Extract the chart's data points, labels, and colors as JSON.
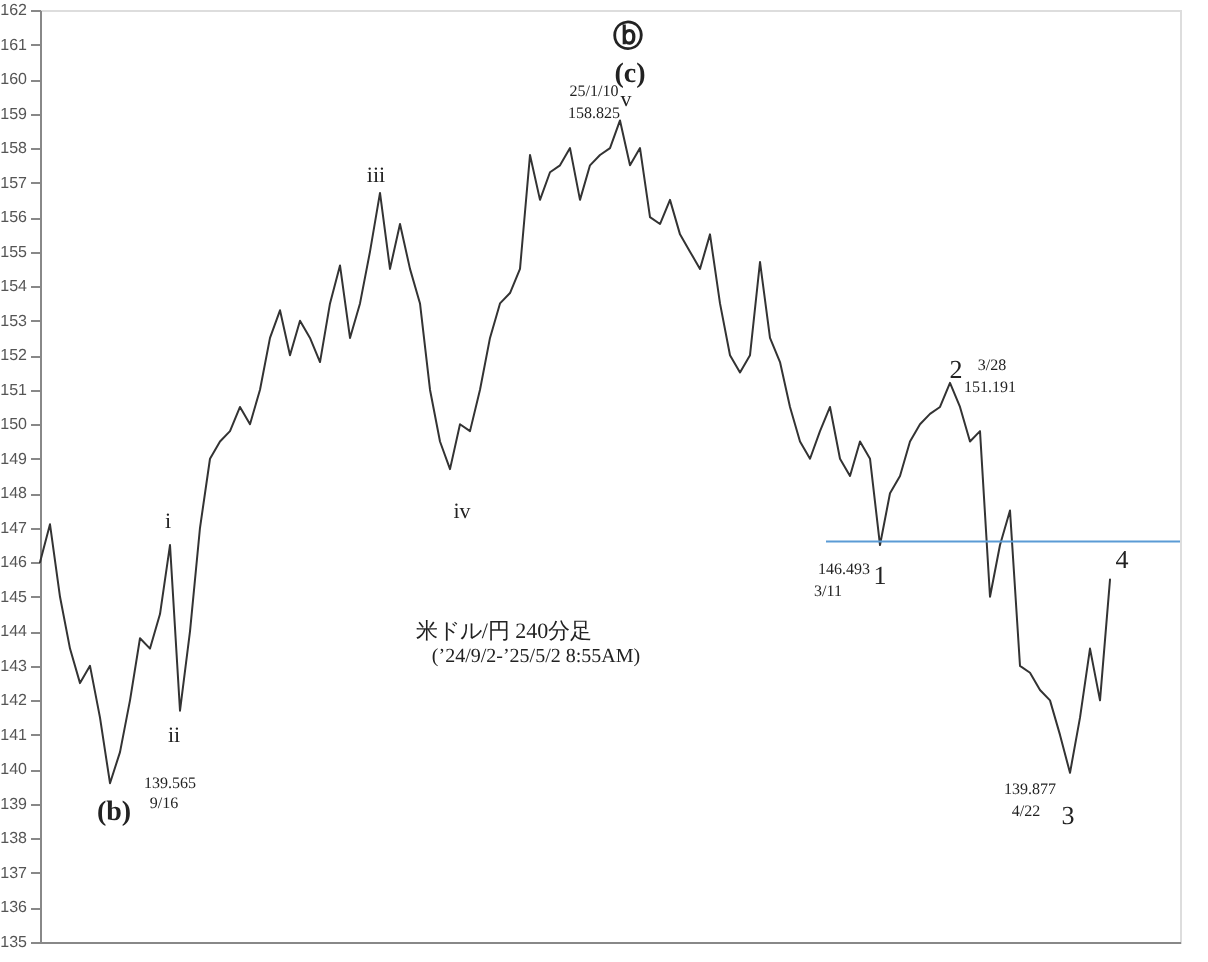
{
  "chart_data": {
    "type": "line",
    "categories": [
      null,
      null,
      null,
      null,
      null,
      null,
      null,
      null,
      null,
      null,
      null,
      null,
      null,
      null,
      null,
      null,
      null,
      null,
      null,
      null,
      null,
      null,
      null,
      null,
      null,
      null,
      null,
      null,
      null,
      null,
      null,
      null,
      null,
      null,
      null,
      null,
      null,
      null,
      null,
      null,
      null,
      null,
      null,
      null,
      null,
      null,
      null,
      null,
      null,
      null,
      null,
      null,
      null,
      null,
      null,
      null,
      null,
      null,
      null,
      null,
      null,
      null,
      null,
      null,
      null,
      null,
      null,
      null,
      null,
      null,
      null,
      null,
      null,
      null,
      null,
      null,
      null,
      null,
      null,
      null,
      null,
      null,
      null,
      null,
      null,
      null,
      null,
      null,
      null,
      null,
      null,
      null,
      null,
      null,
      null,
      null,
      null,
      null,
      null,
      null,
      null,
      null,
      null,
      null,
      null,
      null,
      null,
      null,
      null,
      null,
      null,
      null,
      null,
      null,
      null
    ],
    "series": [
      {
        "color": "#333333",
        "values": [
          146,
          147.1,
          145,
          143.5,
          142.5,
          143,
          141.5,
          139.6,
          140.5,
          142,
          143.8,
          143.5,
          144.5,
          146.5,
          141.7,
          144,
          147,
          149,
          149.5,
          149.8,
          150.5,
          150,
          151,
          152.5,
          153.3,
          152,
          153,
          152.5,
          151.8,
          153.5,
          154.6,
          152.5,
          153.5,
          155,
          156.7,
          154.5,
          155.8,
          154.5,
          153.5,
          151,
          149.5,
          148.7,
          150,
          149.8,
          151,
          152.5,
          153.5,
          153.8,
          154.5,
          157.8,
          156.5,
          157.3,
          157.5,
          158,
          156.5,
          157.5,
          157.8,
          158,
          158.8,
          157.5,
          158,
          156,
          155.8,
          156.5,
          155.5,
          155,
          154.5,
          155.5,
          153.5,
          152,
          151.5,
          152,
          154.7,
          152.5,
          151.8,
          150.5,
          149.5,
          149,
          149.8,
          150.5,
          149,
          148.5,
          149.5,
          149,
          146.5,
          148,
          148.5,
          149.5,
          150,
          150.3,
          150.5,
          151.2,
          150.5,
          149.5,
          149.8,
          145,
          146.5,
          147.5,
          143,
          142.8,
          142.3,
          142,
          141,
          139.9,
          141.5,
          143.5,
          142,
          145.5,
          null,
          null,
          null,
          null,
          null,
          null,
          null
        ]
      }
    ],
    "ylim": [
      135,
      162
    ],
    "yticks": [
      135,
      136,
      137,
      138,
      139,
      140,
      141,
      142,
      143,
      144,
      145,
      146,
      147,
      148,
      149,
      150,
      151,
      152,
      153,
      154,
      155,
      156,
      157,
      158,
      159,
      160,
      161,
      162
    ],
    "tick_labels": "y",
    "grid": false,
    "ref_lines": [
      {
        "axis": "y",
        "value": 146.6,
        "color": "#5b9bd5"
      }
    ],
    "annotations": [
      "ⓑ",
      "(c)",
      "v",
      "25/1/10",
      "158.825",
      "iii",
      "iv",
      "i",
      "ii",
      "139.565",
      "9/16",
      "(b)",
      "米ドル/円 240分足",
      "(’24/9/2-’25/5/2 8:55AM)",
      "146.493",
      "3/11",
      "1",
      "2",
      "3/28",
      "151.191",
      "4",
      "139.877",
      "4/22",
      "3"
    ]
  }
}
